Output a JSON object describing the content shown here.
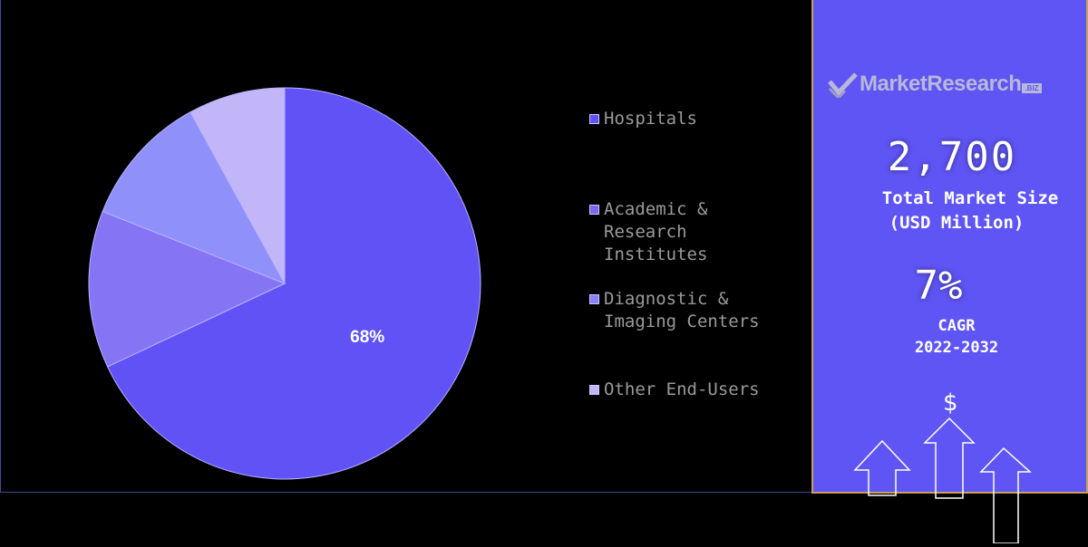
{
  "chart_data": {
    "type": "pie",
    "categories": [
      "Hospitals",
      "Academic & Research Institutes",
      "Diagnostic & Imaging Centers",
      "Other End-Users"
    ],
    "values": [
      68,
      13,
      11,
      8
    ],
    "data_labels": [
      "68%",
      "",
      "",
      ""
    ],
    "colors": [
      "#6052f5",
      "#8575f5",
      "#9090fb",
      "#c2b6f9"
    ],
    "legend_placement": "right"
  },
  "legend": {
    "items": [
      {
        "label": "Hospitals",
        "color": "#6052f5"
      },
      {
        "label": "Academic &\nResearch\nInstitutes",
        "color": "#7a68f3"
      },
      {
        "label": "Diagnostic &\nImaging Centers",
        "color": "#8b80fa"
      },
      {
        "label": "Other End-Users",
        "color": "#c2b6f9"
      }
    ]
  },
  "sidebar": {
    "logo_text": "MarketResearch",
    "logo_suffix": ".BIZ",
    "market_size_value": "2,700",
    "market_size_label": "Total Market Size",
    "market_size_unit": "(USD Million)",
    "cagr_value": "7%",
    "cagr_label": "CAGR",
    "cagr_period": "2022-2032",
    "dollar_symbol": "$"
  }
}
